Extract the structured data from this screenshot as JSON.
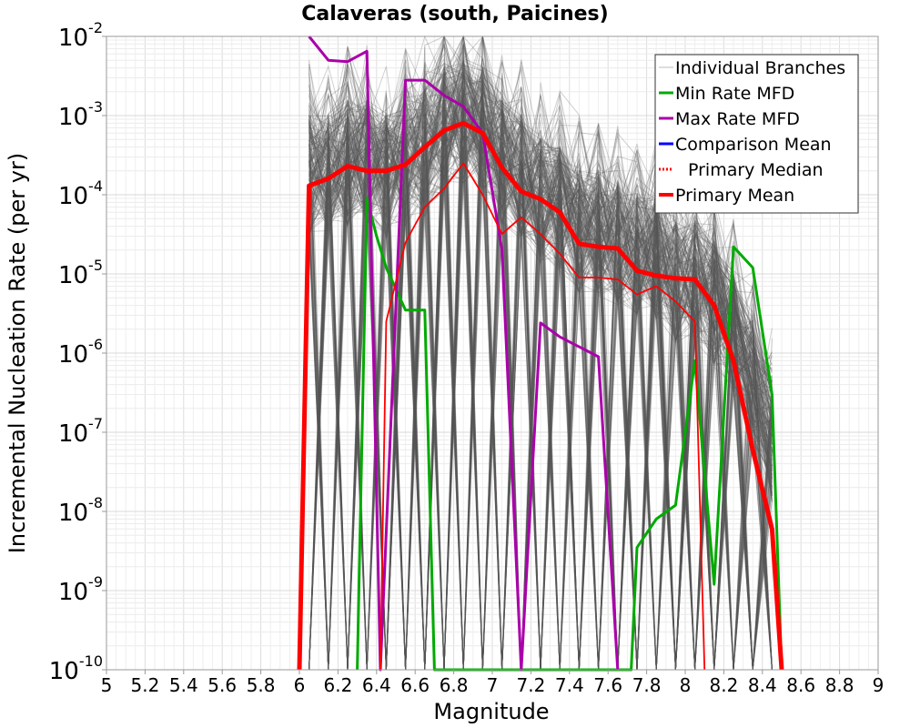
{
  "chart_data": {
    "type": "line",
    "title": "Calaveras (south, Paicines)",
    "xlabel": "Magnitude",
    "ylabel": "Incremental Nucleation Rate (per yr)",
    "xlim": [
      5,
      9
    ],
    "ylim_log10": [
      -10,
      -2
    ],
    "y_scale": "log",
    "grid": true,
    "legend_position": "top-right",
    "x_ticks": [
      "5",
      "5.2",
      "5.4",
      "5.6",
      "5.8",
      "6",
      "6.2",
      "6.4",
      "6.6",
      "6.8",
      "7",
      "7.2",
      "7.4",
      "7.6",
      "7.8",
      "8",
      "8.2",
      "8.4",
      "8.6",
      "8.8",
      "9"
    ],
    "y_ticks": [
      {
        "base": "10",
        "exp": "-10"
      },
      {
        "base": "10",
        "exp": "-9"
      },
      {
        "base": "10",
        "exp": "-8"
      },
      {
        "base": "10",
        "exp": "-7"
      },
      {
        "base": "10",
        "exp": "-6"
      },
      {
        "base": "10",
        "exp": "-5"
      },
      {
        "base": "10",
        "exp": "-4"
      },
      {
        "base": "10",
        "exp": "-3"
      },
      {
        "base": "10",
        "exp": "-2"
      }
    ],
    "series": [
      {
        "name": "Individual Branches",
        "color": "#555555",
        "style": "solid",
        "x": [
          6.05,
          6.15,
          6.25,
          6.35,
          6.45,
          6.55,
          6.65,
          6.75,
          6.85,
          6.95,
          7.05,
          7.15,
          7.25,
          7.35,
          7.45,
          7.55,
          7.65,
          7.75,
          7.85,
          7.95,
          8.05,
          8.15,
          8.25,
          8.35,
          8.45
        ],
        "y": [
          0.0002,
          0.0002,
          0.0003,
          0.0003,
          0.0002,
          0.0003,
          0.0004,
          0.0008,
          0.001,
          0.0008,
          0.0003,
          0.0002,
          0.0001,
          8e-05,
          4e-05,
          4e-05,
          3e-05,
          2e-05,
          2e-05,
          1e-05,
          1e-05,
          5e-06,
          2e-06,
          5e-07,
          1e-07
        ]
      },
      {
        "name": "Min Rate MFD",
        "color": "#00aa00",
        "style": "solid",
        "x": [
          6.3,
          6.35,
          6.4,
          6.45,
          6.55,
          6.65,
          6.7,
          7.72,
          7.75,
          7.85,
          7.95,
          8.05,
          8.15,
          8.25,
          8.35,
          8.45,
          8.5
        ],
        "y": [
          1e-10,
          9e-05,
          3e-05,
          1.2e-05,
          3.5e-06,
          3.5e-06,
          1e-10,
          1e-10,
          3.5e-09,
          8e-09,
          1.2e-08,
          8e-07,
          1.2e-09,
          2.2e-05,
          1.2e-05,
          3e-07,
          1e-10
        ]
      },
      {
        "name": "Max Rate MFD",
        "color": "#aa00aa",
        "style": "solid",
        "x": [
          6.05,
          6.15,
          6.25,
          6.35,
          6.42,
          6.55,
          6.65,
          6.75,
          6.85,
          6.95,
          7.05,
          7.15,
          7.25,
          7.35,
          7.45,
          7.55,
          7.65
        ],
        "y": [
          0.011,
          0.005,
          0.0048,
          0.0065,
          1e-10,
          0.0028,
          0.0028,
          0.0018,
          0.0013,
          0.0006,
          2e-05,
          1e-10,
          2.4e-06,
          1.6e-06,
          1.2e-06,
          9e-07,
          1e-10
        ]
      },
      {
        "name": "Comparison Mean",
        "color": "#0000ff",
        "style": "solid",
        "x": [],
        "y": []
      },
      {
        "name": "Primary Median",
        "color": "#ff0000",
        "style": "dotted",
        "x": [
          6.42,
          6.45,
          6.55,
          6.65,
          6.75,
          6.85,
          6.95,
          7.05,
          7.15,
          7.25,
          7.35,
          7.45,
          7.55,
          7.65,
          7.75,
          7.85,
          7.95,
          8.05,
          8.1
        ],
        "y": [
          1e-10,
          2.5e-06,
          2.5e-05,
          7e-05,
          0.00012,
          0.00025,
          0.0001,
          3.2e-05,
          5.2e-05,
          3.2e-05,
          1.8e-05,
          9e-06,
          9e-06,
          8.5e-06,
          5.5e-06,
          7e-06,
          4.5e-06,
          2.5e-06,
          1e-10
        ]
      },
      {
        "name": "Primary Mean",
        "color": "#ff0000",
        "style": "solid",
        "x": [
          6.0,
          6.05,
          6.15,
          6.25,
          6.35,
          6.45,
          6.55,
          6.65,
          6.75,
          6.85,
          6.95,
          7.05,
          7.15,
          7.25,
          7.35,
          7.45,
          7.55,
          7.65,
          7.75,
          7.85,
          7.95,
          8.05,
          8.15,
          8.25,
          8.35,
          8.45,
          8.5
        ],
        "y": [
          1e-10,
          0.00013,
          0.00016,
          0.00023,
          0.0002,
          0.0002,
          0.00024,
          0.0004,
          0.00065,
          0.0008,
          0.0006,
          0.00022,
          0.00011,
          8.8e-05,
          6e-05,
          2.4e-05,
          2.2e-05,
          2.1e-05,
          1.1e-05,
          9.5e-06,
          8.8e-06,
          8.5e-06,
          4e-06,
          8e-07,
          6e-08,
          6e-09,
          1e-10
        ]
      }
    ]
  }
}
